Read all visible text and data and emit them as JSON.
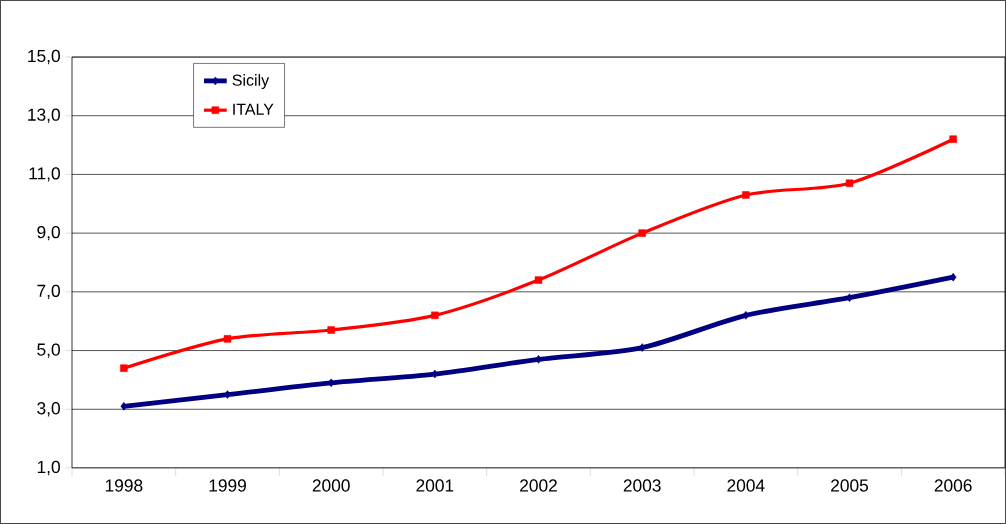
{
  "chart_data": {
    "type": "line",
    "categories": [
      "1998",
      "1999",
      "2000",
      "2001",
      "2002",
      "2003",
      "2004",
      "2005",
      "2006"
    ],
    "series": [
      {
        "name": "Sicily",
        "color": "#000080",
        "marker": "diamond",
        "values": [
          3.1,
          3.5,
          3.9,
          4.2,
          4.7,
          5.1,
          6.2,
          6.8,
          7.5
        ]
      },
      {
        "name": "ITALY",
        "color": "#ff0000",
        "marker": "square",
        "values": [
          4.4,
          5.4,
          5.7,
          6.2,
          7.4,
          9.0,
          10.3,
          10.7,
          12.2
        ]
      }
    ],
    "ylim": [
      1,
      15
    ],
    "yticks": [
      {
        "value": 1,
        "label": "1,0"
      },
      {
        "value": 3,
        "label": "3,0"
      },
      {
        "value": 5,
        "label": "5,0"
      },
      {
        "value": 7,
        "label": "7,0"
      },
      {
        "value": 9,
        "label": "9,0"
      },
      {
        "value": 11,
        "label": "11,0"
      },
      {
        "value": 13,
        "label": "13,0"
      },
      {
        "value": 15,
        "label": "15,0"
      }
    ],
    "grid": "y",
    "legend": "top left",
    "line_style": "solid"
  }
}
